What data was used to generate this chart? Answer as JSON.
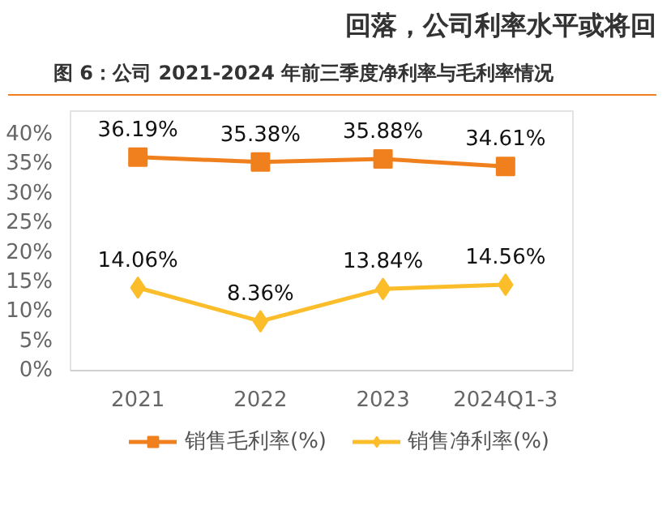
{
  "chart_data": {
    "type": "line",
    "title": "图 6：公司 2021-2024 年前三季度净利率与毛利率情况",
    "annotations": [
      "回落，公司利率水平或将回"
    ],
    "categories": [
      "2021",
      "2022",
      "2023",
      "2024Q1-3"
    ],
    "series": [
      {
        "name": "销售毛利率(%)",
        "color": "#f0801e",
        "marker": "square",
        "values": [
          36.19,
          35.38,
          35.88,
          34.61
        ],
        "value_labels": [
          "36.19%",
          "35.38%",
          "35.88%",
          "34.61%"
        ]
      },
      {
        "name": "销售净利率(%)",
        "color": "#fbbd2a",
        "marker": "diamond",
        "values": [
          14.06,
          8.36,
          13.84,
          14.56
        ],
        "value_labels": [
          "14.06%",
          "8.36%",
          "13.84%",
          "14.56%"
        ]
      }
    ],
    "ylim": [
      0,
      44
    ],
    "yticks": [
      {
        "value": 0,
        "label": "0%"
      },
      {
        "value": 5,
        "label": "5%"
      },
      {
        "value": 10,
        "label": "10%"
      },
      {
        "value": 15,
        "label": "15%"
      },
      {
        "value": 20,
        "label": "20%"
      },
      {
        "value": 25,
        "label": "25%"
      },
      {
        "value": 30,
        "label": "30%"
      },
      {
        "value": 35,
        "label": "35%"
      },
      {
        "value": 40,
        "label": "40%"
      }
    ],
    "grid": false,
    "legend": "bottom",
    "line_style": "solid"
  }
}
